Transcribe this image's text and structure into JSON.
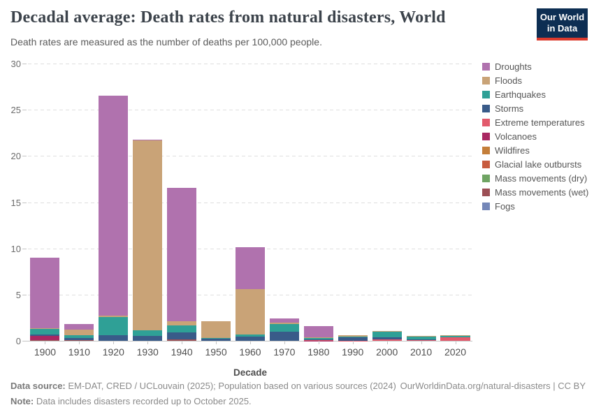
{
  "header": {
    "title": "Decadal average: Death rates from natural disasters, World",
    "subtitle": "Death rates are measured as the number of deaths per 100,000 people.",
    "logo_line1": "Our World",
    "logo_line2": "in Data",
    "logo_bg_color": "#0d2e53",
    "logo_accent_color": "#dc3a2d"
  },
  "chart_data": {
    "type": "bar",
    "stacked": true,
    "title": "Decadal average: Death rates from natural disasters, World",
    "xlabel": "Decade",
    "ylabel": "",
    "ylim": [
      0,
      30
    ],
    "y_ticks": [
      0,
      5,
      10,
      15,
      20,
      25,
      30
    ],
    "grid": "horizontal-dashed",
    "legend_position": "right",
    "stack_order": "bottom-to-top is reverse of series list (Droughts on top)",
    "categories": [
      "1900",
      "1910",
      "1920",
      "1930",
      "1940",
      "1950",
      "1960",
      "1970",
      "1980",
      "1990",
      "2000",
      "2010",
      "2020"
    ],
    "series": [
      {
        "name": "Droughts",
        "color": "#b072ae",
        "values": [
          7.65,
          0.6,
          23.8,
          0.1,
          14.4,
          0.02,
          4.55,
          0.42,
          1.2,
          0.03,
          0.02,
          0,
          0
        ]
      },
      {
        "name": "Floods",
        "color": "#c9a377",
        "values": [
          0.05,
          0.55,
          0.1,
          20.6,
          0.5,
          1.8,
          4.95,
          0.2,
          0.1,
          0.13,
          0.08,
          0.07,
          0.07
        ]
      },
      {
        "name": "Earthquakes",
        "color": "#2fa096",
        "values": [
          0.65,
          0.3,
          2.0,
          0.6,
          0.75,
          0.1,
          0.2,
          0.85,
          0.12,
          0.12,
          0.6,
          0.32,
          0.12
        ]
      },
      {
        "name": "Storms",
        "color": "#395b89",
        "values": [
          0.1,
          0.25,
          0.6,
          0.5,
          0.75,
          0.2,
          0.45,
          0.95,
          0.1,
          0.33,
          0.2,
          0.07,
          0.05
        ]
      },
      {
        "name": "Extreme temperatures",
        "color": "#e25a6c",
        "values": [
          0,
          0,
          0,
          0,
          0,
          0,
          0,
          0,
          0.04,
          0.03,
          0.16,
          0.1,
          0.35
        ]
      },
      {
        "name": "Volcanoes",
        "color": "#a92862",
        "values": [
          0.45,
          0.03,
          0,
          0,
          0,
          0,
          0,
          0,
          0.02,
          0,
          0,
          0,
          0
        ]
      },
      {
        "name": "Wildfires",
        "color": "#c47e3a",
        "values": [
          0,
          0,
          0,
          0,
          0,
          0,
          0,
          0,
          0,
          0,
          0,
          0,
          0
        ]
      },
      {
        "name": "Glacial lake outbursts",
        "color": "#c75b3e",
        "values": [
          0,
          0,
          0,
          0,
          0,
          0,
          0,
          0,
          0,
          0,
          0,
          0,
          0
        ]
      },
      {
        "name": "Mass movements (dry)",
        "color": "#6fa463",
        "values": [
          0,
          0,
          0,
          0,
          0,
          0,
          0,
          0,
          0,
          0,
          0,
          0,
          0
        ]
      },
      {
        "name": "Mass movements (wet)",
        "color": "#9c4f55",
        "values": [
          0.1,
          0.05,
          0,
          0,
          0.15,
          0,
          0,
          0,
          0,
          0,
          0,
          0,
          0
        ]
      },
      {
        "name": "Fogs",
        "color": "#7487b8",
        "values": [
          0,
          0,
          0,
          0,
          0,
          0,
          0,
          0,
          0,
          0,
          0,
          0,
          0
        ]
      }
    ]
  },
  "footer": {
    "source_label": "Data source:",
    "source_text": " EM-DAT, CRED / UCLouvain (2025); Population based on various sources (2024)",
    "link": "OurWorldinData.org/natural-disasters | CC BY",
    "note_label": "Note:",
    "note_text": " Data includes disasters recorded up to October 2025."
  }
}
